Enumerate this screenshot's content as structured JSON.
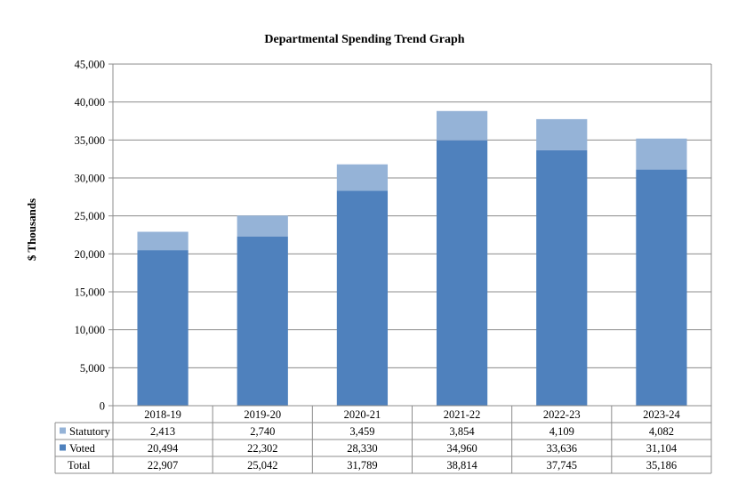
{
  "chart_data": {
    "type": "bar",
    "stacked": true,
    "title": "Departmental Spending Trend Graph",
    "ylabel": "$ Thousands",
    "xlabel": "",
    "ylim": [
      0,
      45000
    ],
    "ytick_step": 5000,
    "grid": true,
    "categories": [
      "2018-19",
      "2019-20",
      "2020-21",
      "2021-22",
      "2022-23",
      "2023-24"
    ],
    "series": [
      {
        "name": "Statutory",
        "values": [
          2413,
          2740,
          3459,
          3854,
          4109,
          4082
        ],
        "labels": [
          "2,413",
          "2,740",
          "3,459",
          "3,854",
          "4,109",
          "4,082"
        ],
        "color": "#95b3d7"
      },
      {
        "name": "Voted",
        "values": [
          20494,
          22302,
          28330,
          34960,
          33636,
          31104
        ],
        "labels": [
          "20,494",
          "22,302",
          "28,330",
          "34,960",
          "33,636",
          "31,104"
        ],
        "color": "#4f81bd"
      }
    ],
    "total": {
      "name": "Total",
      "values": [
        22907,
        25042,
        31789,
        38814,
        37745,
        35186
      ],
      "labels": [
        "22,907",
        "25,042",
        "31,789",
        "38,814",
        "37,745",
        "35,186"
      ]
    },
    "stack_order": [
      "Voted",
      "Statutory"
    ],
    "legend": "data-table-left"
  }
}
